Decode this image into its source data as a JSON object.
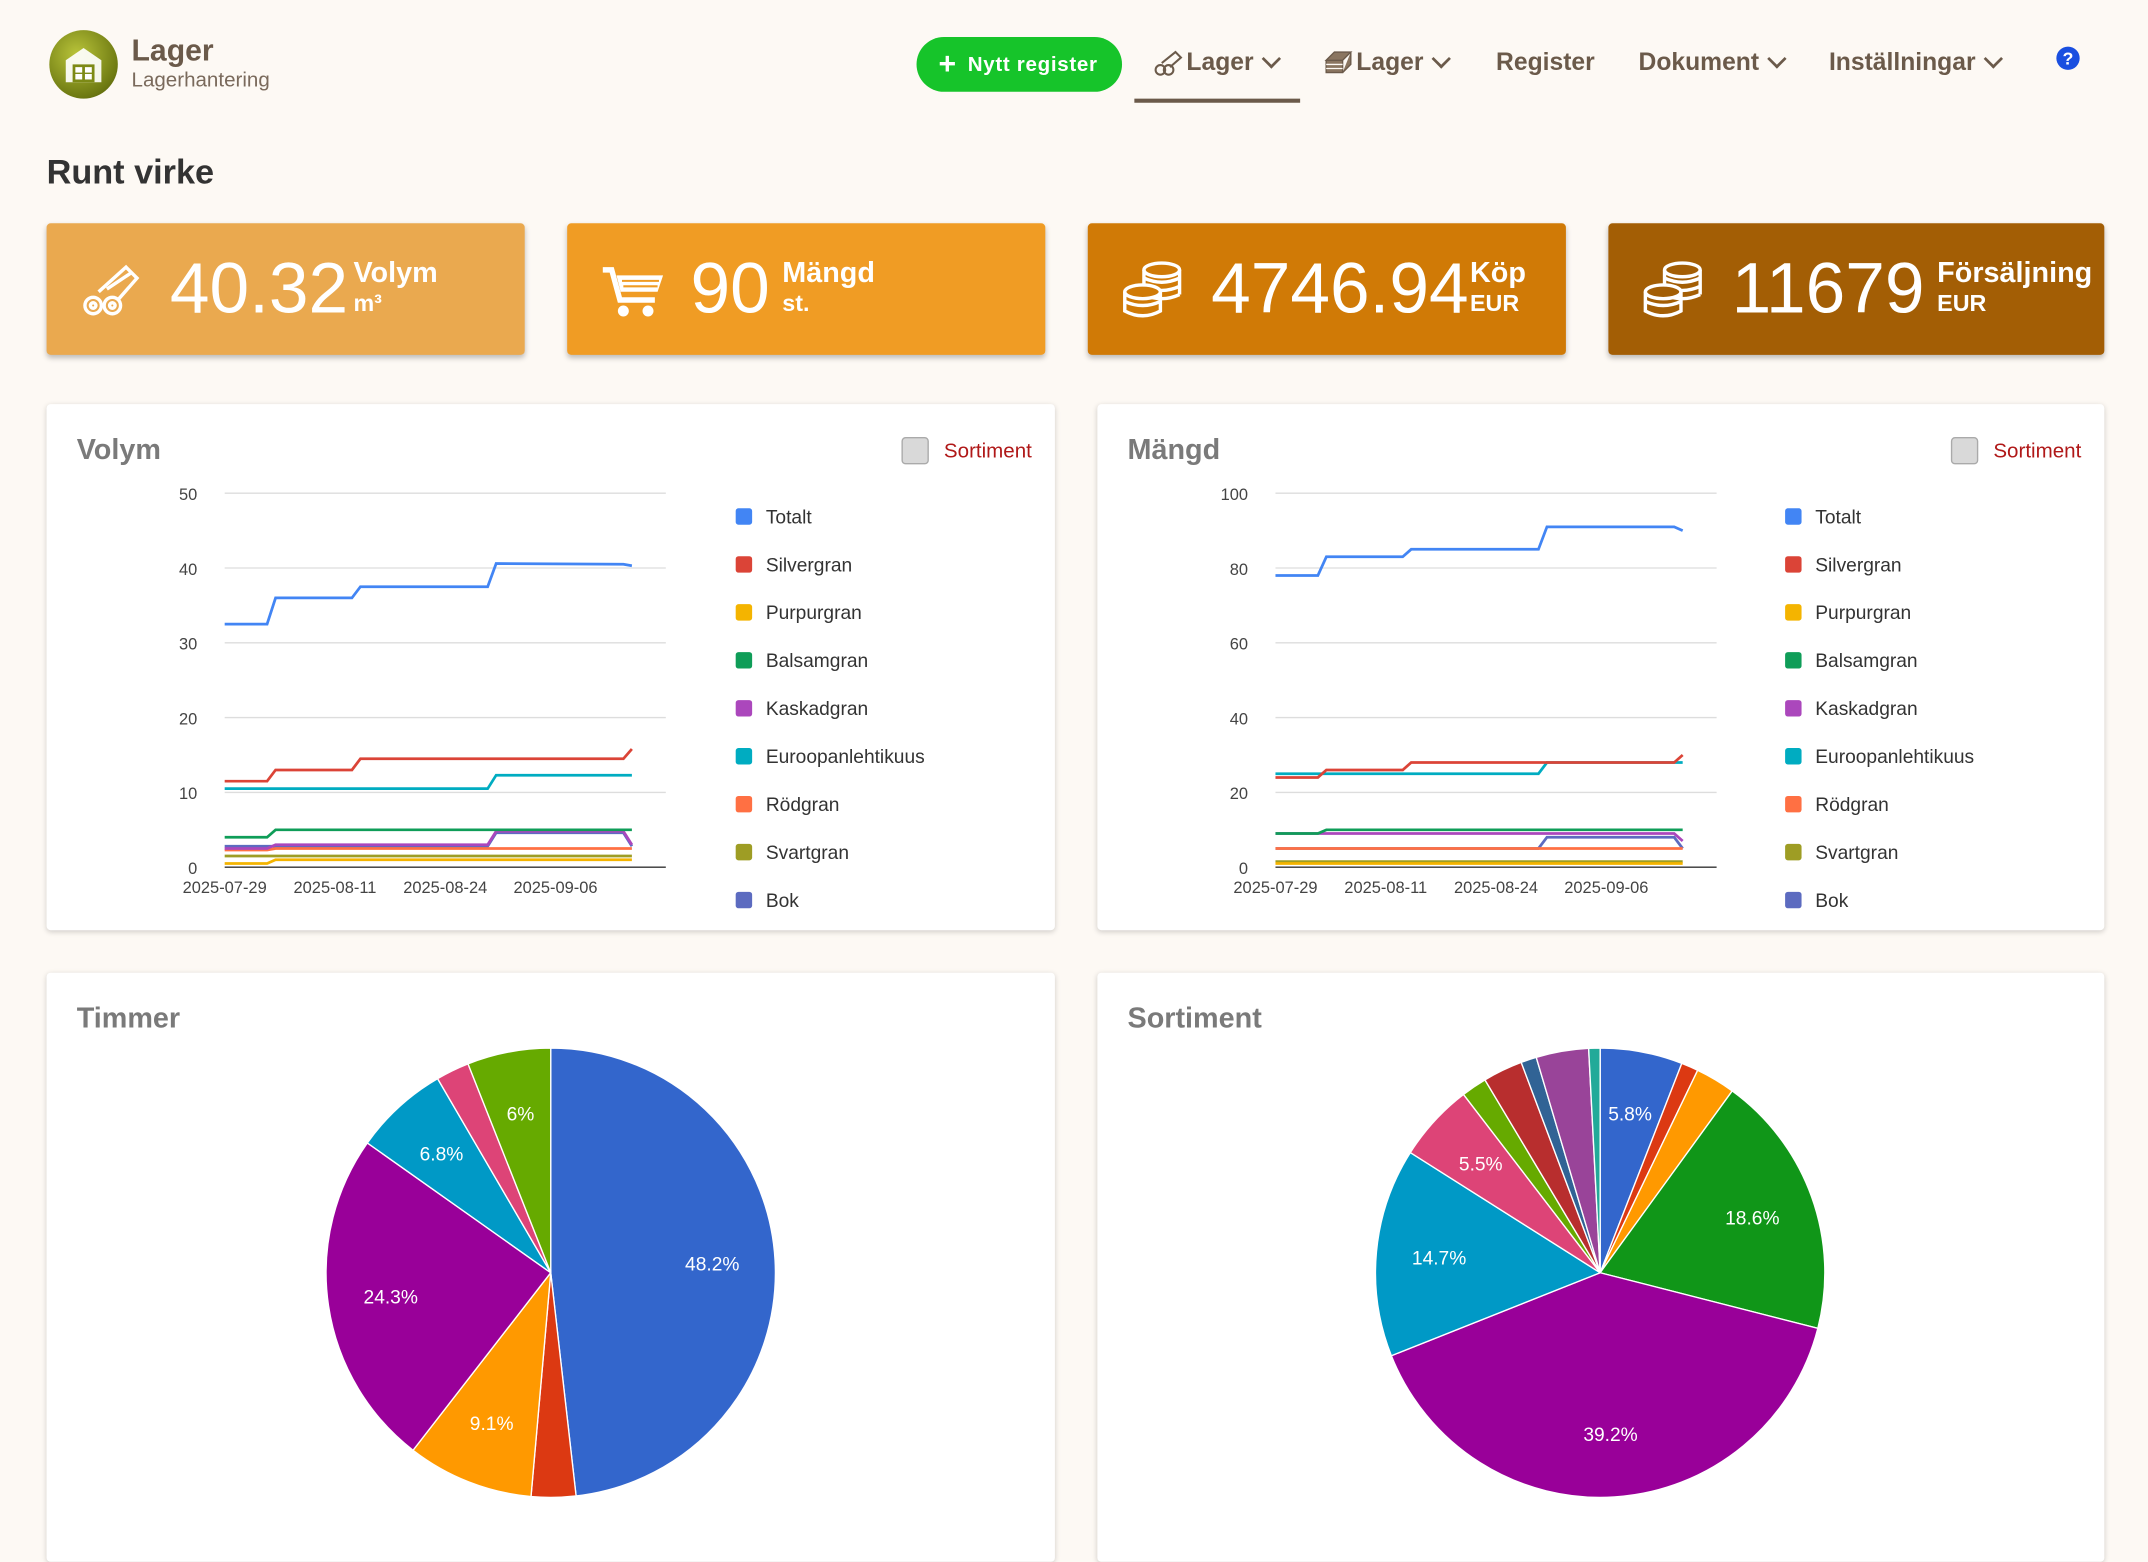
{
  "header": {
    "brand_title": "Lager",
    "brand_subtitle": "Lagerhantering",
    "new_button": "Nytt register",
    "nav": [
      {
        "label": "Lager",
        "icon": "logs-icon",
        "dropdown": true,
        "active": true
      },
      {
        "label": "Lager",
        "icon": "planks-icon",
        "dropdown": true,
        "active": false
      },
      {
        "label": "Register",
        "dropdown": false,
        "active": false
      },
      {
        "label": "Dokument",
        "dropdown": true,
        "active": false
      },
      {
        "label": "Inställningar",
        "dropdown": true,
        "active": false
      }
    ],
    "help": "?"
  },
  "page_title": "Runt virke",
  "stats": [
    {
      "value": "40.32",
      "label": "Volym",
      "unit": "m³",
      "icon": "logs-icon",
      "color": "#eaa94f"
    },
    {
      "value": "90",
      "label": "Mängd",
      "unit": "st.",
      "icon": "cart-icon",
      "color": "#f09c24"
    },
    {
      "value": "4746.94",
      "label": "Köp",
      "unit": "EUR",
      "icon": "coins-icon",
      "color": "#d07a06"
    },
    {
      "value": "11679",
      "label": "Försäljning",
      "unit": "EUR",
      "icon": "coins-icon",
      "color": "#a35e05"
    }
  ],
  "colors": {
    "Totalt": "#4285f4",
    "Silvergran": "#db4437",
    "Purpurgran": "#f4b400",
    "Balsamgran": "#0f9d58",
    "Kaskadgran": "#ab47bc",
    "Euroopanlehtikuus": "#00acc1",
    "Rödgran": "#ff7043",
    "Svartgran": "#9e9d24",
    "Bok": "#5c6bc0"
  },
  "toggle_label": "Sortiment",
  "chart_data": [
    {
      "type": "line",
      "title": "Volym",
      "x_ticks": [
        "2025-07-29",
        "2025-08-11",
        "2025-08-24",
        "2025-09-06"
      ],
      "x": [
        0,
        5,
        6,
        15,
        16,
        31,
        32,
        47,
        48
      ],
      "ylim": [
        0,
        50
      ],
      "y_ticks": [
        0,
        10,
        20,
        30,
        40,
        50
      ],
      "grid": true,
      "legend": "right",
      "series": [
        {
          "name": "Totalt",
          "values": [
            32.5,
            32.5,
            36,
            36,
            37.5,
            37.5,
            40.6,
            40.5,
            40.3
          ]
        },
        {
          "name": "Silvergran",
          "values": [
            11.5,
            11.5,
            13,
            13,
            14.5,
            14.5,
            14.5,
            14.5,
            15.8
          ]
        },
        {
          "name": "Purpurgran",
          "values": [
            0.5,
            0.5,
            1,
            1,
            1,
            1,
            1,
            1,
            1
          ]
        },
        {
          "name": "Balsamgran",
          "values": [
            4,
            4,
            5,
            5,
            5,
            5,
            5,
            5,
            5
          ]
        },
        {
          "name": "Kaskadgran",
          "values": [
            2.5,
            2.5,
            3,
            3,
            3,
            3,
            4.8,
            4.8,
            3
          ]
        },
        {
          "name": "Euroopanlehtikuus",
          "values": [
            10.5,
            10.5,
            10.5,
            10.5,
            10.5,
            10.5,
            12.3,
            12.3,
            12.3
          ]
        },
        {
          "name": "Rödgran",
          "values": [
            2.3,
            2.3,
            2.5,
            2.5,
            2.5,
            2.5,
            2.5,
            2.5,
            2.5
          ]
        },
        {
          "name": "Svartgran",
          "values": [
            1.5,
            1.5,
            1.5,
            1.5,
            1.5,
            1.5,
            1.5,
            1.5,
            1.5
          ]
        },
        {
          "name": "Bok",
          "values": [
            2.8,
            2.8,
            2.8,
            2.8,
            2.8,
            2.8,
            4.6,
            4.6,
            2.8
          ]
        }
      ]
    },
    {
      "type": "line",
      "title": "Mängd",
      "x_ticks": [
        "2025-07-29",
        "2025-08-11",
        "2025-08-24",
        "2025-09-06"
      ],
      "x": [
        0,
        5,
        6,
        15,
        16,
        31,
        32,
        47,
        48
      ],
      "ylim": [
        0,
        100
      ],
      "y_ticks": [
        0,
        20,
        40,
        60,
        80,
        100
      ],
      "grid": true,
      "legend": "right",
      "series": [
        {
          "name": "Totalt",
          "values": [
            78,
            78,
            83,
            83,
            85,
            85,
            91,
            91,
            90
          ]
        },
        {
          "name": "Silvergran",
          "values": [
            24,
            24,
            26,
            26,
            28,
            28,
            28,
            28,
            30
          ]
        },
        {
          "name": "Purpurgran",
          "values": [
            1,
            1,
            1,
            1,
            1,
            1,
            1,
            1,
            1
          ]
        },
        {
          "name": "Balsamgran",
          "values": [
            9,
            9,
            10,
            10,
            10,
            10,
            10,
            10,
            10
          ]
        },
        {
          "name": "Kaskadgran",
          "values": [
            9,
            9,
            9,
            9,
            9,
            9,
            9,
            9,
            7
          ]
        },
        {
          "name": "Euroopanlehtikuus",
          "values": [
            25,
            25,
            25,
            25,
            25,
            25,
            28,
            28,
            28
          ]
        },
        {
          "name": "Rödgran",
          "values": [
            5,
            5,
            5,
            5,
            5,
            5,
            5,
            5,
            5
          ]
        },
        {
          "name": "Svartgran",
          "values": [
            1.5,
            1.5,
            1.5,
            1.5,
            1.5,
            1.5,
            1.5,
            1.5,
            1.5
          ]
        },
        {
          "name": "Bok",
          "values": [
            5,
            5,
            5,
            5,
            5,
            5,
            8,
            8,
            5
          ]
        }
      ]
    },
    {
      "type": "pie",
      "title": "Timmer",
      "slices": [
        {
          "value": 48.2,
          "label": "48.2%",
          "color": "#3366cc"
        },
        {
          "value": 3.2,
          "label": "",
          "color": "#dc3912"
        },
        {
          "value": 9.1,
          "label": "9.1%",
          "color": "#ff9900"
        },
        {
          "value": 24.3,
          "label": "24.3%",
          "color": "#990099"
        },
        {
          "value": 6.8,
          "label": "6.8%",
          "color": "#0099c6"
        },
        {
          "value": 2.4,
          "label": "",
          "color": "#dd4477"
        },
        {
          "value": 6.0,
          "label": "6%",
          "color": "#66aa00"
        }
      ]
    },
    {
      "type": "pie",
      "title": "Sortiment",
      "slices": [
        {
          "value": 5.8,
          "label": "5.8%",
          "color": "#3366cc"
        },
        {
          "value": 1.2,
          "label": "",
          "color": "#dc3912"
        },
        {
          "value": 2.8,
          "label": "",
          "color": "#ff9900"
        },
        {
          "value": 18.6,
          "label": "18.6%",
          "color": "#109618"
        },
        {
          "value": 39.2,
          "label": "39.2%",
          "color": "#990099"
        },
        {
          "value": 14.7,
          "label": "14.7%",
          "color": "#0099c6"
        },
        {
          "value": 5.5,
          "label": "5.5%",
          "color": "#dd4477"
        },
        {
          "value": 1.8,
          "label": "",
          "color": "#66aa00"
        },
        {
          "value": 2.8,
          "label": "",
          "color": "#b82e2e"
        },
        {
          "value": 1.1,
          "label": "",
          "color": "#316395"
        },
        {
          "value": 3.7,
          "label": "",
          "color": "#994499"
        },
        {
          "value": 0.8,
          "label": "",
          "color": "#22aa99"
        }
      ]
    }
  ]
}
